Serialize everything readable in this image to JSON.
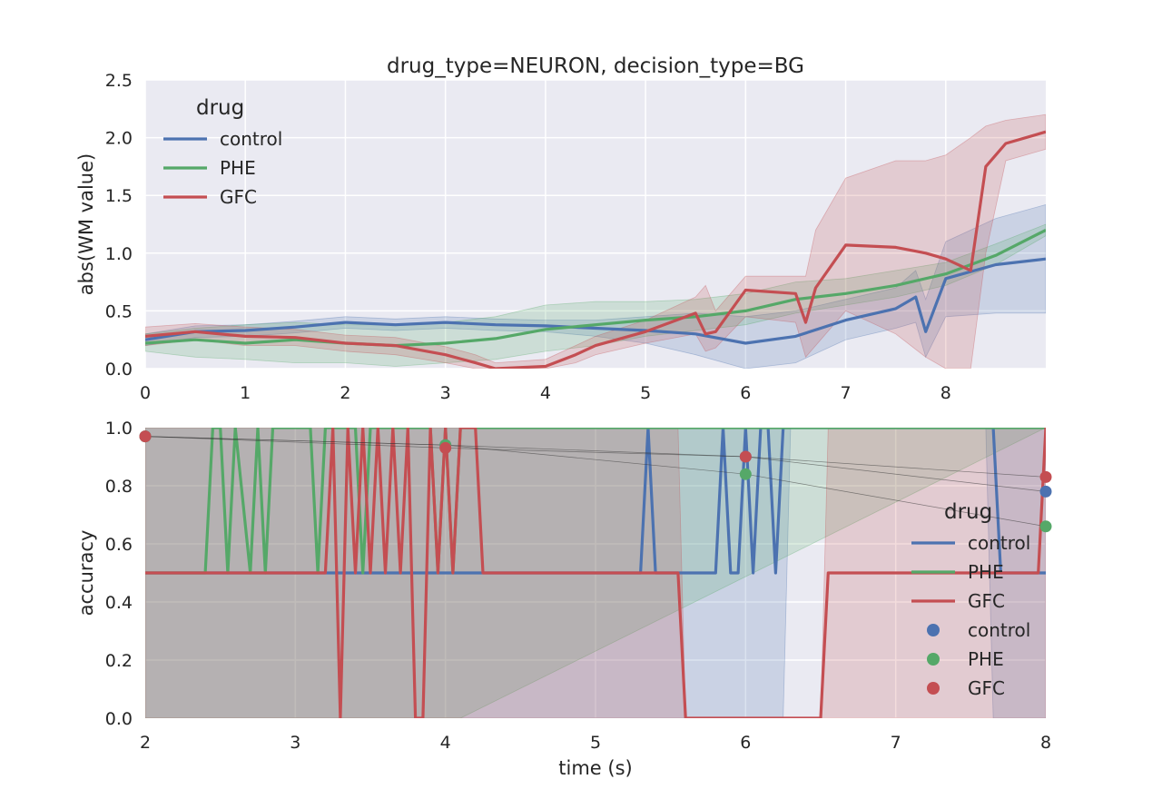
{
  "colors": {
    "control": "#4c72b0",
    "PHE": "#55a868",
    "GFC": "#c44e52",
    "axes_bg": "#eaeaf2",
    "grid": "#ffffff"
  },
  "chart_data": [
    {
      "type": "line",
      "title": "drug_type=NEURON, decision_type=BG",
      "xlabel": "",
      "ylabel": "abs(WM value)",
      "xlim": [
        0,
        9
      ],
      "ylim": [
        0,
        2.5
      ],
      "xticks": [
        "0",
        "1",
        "2",
        "3",
        "4",
        "5",
        "6",
        "7",
        "8"
      ],
      "yticks": [
        "0.0",
        "0.5",
        "1.0",
        "1.5",
        "2.0",
        "2.5"
      ],
      "grid": true,
      "legend": {
        "title": "drug",
        "placement": "top-left",
        "entries": [
          "control",
          "PHE",
          "GFC"
        ]
      },
      "series": [
        {
          "name": "control",
          "x": [
            0,
            0.5,
            1,
            1.5,
            2,
            2.5,
            3,
            3.5,
            4,
            4.5,
            5,
            5.5,
            6,
            6.5,
            7,
            7.5,
            7.7,
            7.8,
            8,
            8.5,
            9
          ],
          "y": [
            0.25,
            0.32,
            0.33,
            0.36,
            0.4,
            0.38,
            0.4,
            0.38,
            0.37,
            0.35,
            0.33,
            0.3,
            0.22,
            0.28,
            0.42,
            0.52,
            0.62,
            0.32,
            0.78,
            0.9,
            0.95
          ],
          "lower": [
            0.2,
            0.27,
            0.28,
            0.31,
            0.35,
            0.33,
            0.35,
            0.33,
            0.32,
            0.28,
            0.22,
            0.12,
            0.0,
            0.05,
            0.25,
            0.35,
            0.4,
            0.1,
            0.45,
            0.48,
            0.48
          ],
          "upper": [
            0.3,
            0.37,
            0.38,
            0.41,
            0.45,
            0.43,
            0.45,
            0.43,
            0.42,
            0.42,
            0.45,
            0.48,
            0.45,
            0.5,
            0.6,
            0.7,
            0.85,
            0.6,
            1.1,
            1.3,
            1.42
          ]
        },
        {
          "name": "PHE",
          "x": [
            0,
            0.5,
            1,
            1.5,
            2,
            2.5,
            3,
            3.5,
            4,
            4.5,
            5,
            5.5,
            6,
            6.5,
            7,
            7.5,
            8,
            8.5,
            9
          ],
          "y": [
            0.22,
            0.25,
            0.22,
            0.25,
            0.22,
            0.2,
            0.22,
            0.26,
            0.34,
            0.38,
            0.42,
            0.45,
            0.5,
            0.6,
            0.65,
            0.72,
            0.82,
            0.98,
            1.2
          ],
          "lower": [
            0.15,
            0.1,
            0.08,
            0.05,
            0.05,
            0.02,
            0.05,
            0.08,
            0.15,
            0.2,
            0.28,
            0.33,
            0.38,
            0.48,
            0.55,
            0.62,
            0.72,
            0.9,
            1.15
          ],
          "upper": [
            0.3,
            0.35,
            0.38,
            0.4,
            0.38,
            0.38,
            0.4,
            0.45,
            0.55,
            0.58,
            0.58,
            0.6,
            0.65,
            0.75,
            0.78,
            0.85,
            0.92,
            1.08,
            1.25
          ]
        },
        {
          "name": "GFC",
          "x": [
            0,
            0.5,
            1,
            1.5,
            2,
            2.5,
            3,
            3.3,
            3.5,
            4,
            4.3,
            4.5,
            5,
            5.5,
            5.6,
            5.7,
            6,
            6.5,
            6.6,
            6.7,
            7,
            7.5,
            7.8,
            8,
            8.25,
            8.4,
            8.6,
            9
          ],
          "y": [
            0.28,
            0.32,
            0.28,
            0.27,
            0.22,
            0.2,
            0.12,
            0.05,
            0.0,
            0.02,
            0.12,
            0.2,
            0.32,
            0.48,
            0.3,
            0.32,
            0.68,
            0.65,
            0.4,
            0.7,
            1.07,
            1.05,
            1.0,
            0.95,
            0.85,
            1.75,
            1.95,
            2.05
          ],
          "lower": [
            0.2,
            0.25,
            0.2,
            0.2,
            0.15,
            0.12,
            0.05,
            0.0,
            0.0,
            0.0,
            0.05,
            0.12,
            0.22,
            0.3,
            0.15,
            0.18,
            0.45,
            0.4,
            0.1,
            0.2,
            0.5,
            0.3,
            0.1,
            0.0,
            0.0,
            1.0,
            1.8,
            1.9
          ],
          "upper": [
            0.36,
            0.39,
            0.36,
            0.34,
            0.29,
            0.27,
            0.19,
            0.12,
            0.05,
            0.08,
            0.2,
            0.28,
            0.42,
            0.62,
            0.72,
            0.5,
            0.8,
            0.8,
            0.8,
            1.2,
            1.65,
            1.8,
            1.8,
            1.85,
            2.0,
            2.1,
            2.15,
            2.2
          ]
        }
      ]
    },
    {
      "type": "line",
      "title": "",
      "xlabel": "time (s)",
      "ylabel": "accuracy",
      "xlim": [
        2,
        8
      ],
      "ylim": [
        0,
        1
      ],
      "xticks": [
        "2",
        "3",
        "4",
        "5",
        "6",
        "7",
        "8"
      ],
      "yticks": [
        "0.0",
        "0.2",
        "0.4",
        "0.6",
        "0.8",
        "1.0"
      ],
      "grid": true,
      "legend": {
        "title": "drug",
        "placement": "lower-right",
        "entries": [
          "control",
          "PHE",
          "GFC",
          "control",
          "PHE",
          "GFC"
        ]
      },
      "series": [
        {
          "name": "control",
          "x": [
            2,
            5.3,
            5.35,
            5.4,
            5.8,
            5.85,
            5.9,
            5.95,
            6.0,
            6.05,
            6.1,
            6.15,
            6.2,
            6.25,
            6.3,
            7.6,
            7.65,
            7.7,
            8
          ],
          "y": [
            0.5,
            0.5,
            1.0,
            0.5,
            0.5,
            1.0,
            0.5,
            0.5,
            1.0,
            0.5,
            1.0,
            1.0,
            0.5,
            1.0,
            1.0,
            1.0,
            1.0,
            0.5,
            0.5
          ],
          "lower": [
            0.0,
            0.0,
            0.0,
            0.0,
            0.0,
            0.0,
            0.0,
            0.0,
            0.0,
            0.0,
            0.0,
            0.0,
            0.0,
            0.0,
            1.0,
            1.0,
            0.0,
            0.0,
            0.0
          ],
          "upper": [
            1.0,
            1.0,
            1.0,
            1.0,
            1.0,
            1.0,
            1.0,
            1.0,
            1.0,
            1.0,
            1.0,
            1.0,
            1.0,
            1.0,
            1.0,
            1.0,
            1.0,
            1.0,
            1.0
          ]
        },
        {
          "name": "PHE",
          "x": [
            2,
            2.4,
            2.45,
            2.5,
            2.55,
            2.6,
            2.7,
            2.75,
            2.8,
            2.85,
            2.9,
            3.1,
            3.15,
            3.2,
            3.25,
            3.4,
            3.45,
            3.5,
            3.9,
            3.95,
            4.0,
            4.05,
            4.1,
            8
          ],
          "y": [
            0.5,
            0.5,
            1.0,
            1.0,
            0.5,
            1.0,
            0.5,
            1.0,
            0.5,
            1.0,
            1.0,
            1.0,
            0.5,
            1.0,
            1.0,
            1.0,
            0.5,
            1.0,
            1.0,
            0.5,
            1.0,
            0.5,
            1.0,
            1.0
          ],
          "lower": [
            0.0,
            0.0,
            0.0,
            0.0,
            0.0,
            0.0,
            0.0,
            0.0,
            0.0,
            0.0,
            0.0,
            0.0,
            0.0,
            0.0,
            0.0,
            0.0,
            0.0,
            0.0,
            0.0,
            0.0,
            0.0,
            0.0,
            0.0,
            1.0
          ],
          "upper": [
            1.0,
            1.0,
            1.0,
            1.0,
            1.0,
            1.0,
            1.0,
            1.0,
            1.0,
            1.0,
            1.0,
            1.0,
            1.0,
            1.0,
            1.0,
            1.0,
            1.0,
            1.0,
            1.0,
            1.0,
            1.0,
            1.0,
            1.0,
            1.0
          ]
        },
        {
          "name": "GFC",
          "x": [
            2,
            3.2,
            3.25,
            3.3,
            3.35,
            3.4,
            3.45,
            3.5,
            3.55,
            3.6,
            3.65,
            3.7,
            3.75,
            3.8,
            3.85,
            3.9,
            3.95,
            4.0,
            4.05,
            4.1,
            4.15,
            4.2,
            4.25,
            5.55,
            5.6,
            6.5,
            6.55,
            7.95,
            8
          ],
          "y": [
            0.5,
            0.5,
            1.0,
            0.0,
            1.0,
            0.5,
            1.0,
            0.5,
            1.0,
            0.5,
            1.0,
            0.5,
            1.0,
            0.0,
            0.0,
            1.0,
            0.5,
            1.0,
            0.5,
            1.0,
            1.0,
            1.0,
            0.5,
            0.5,
            0.0,
            0.0,
            0.5,
            0.5,
            1.0
          ],
          "lower": [
            0.0,
            0.0,
            0.0,
            0.0,
            0.0,
            0.0,
            0.0,
            0.0,
            0.0,
            0.0,
            0.0,
            0.0,
            0.0,
            0.0,
            0.0,
            0.0,
            0.0,
            0.0,
            0.0,
            0.0,
            0.0,
            0.0,
            0.0,
            0.0,
            0.0,
            0.0,
            0.0,
            0.0,
            0.0
          ],
          "upper": [
            1.0,
            1.0,
            1.0,
            1.0,
            1.0,
            1.0,
            1.0,
            1.0,
            1.0,
            1.0,
            1.0,
            1.0,
            1.0,
            1.0,
            1.0,
            1.0,
            1.0,
            1.0,
            1.0,
            1.0,
            1.0,
            1.0,
            1.0,
            1.0,
            0.0,
            0.0,
            1.0,
            1.0,
            1.0
          ]
        }
      ],
      "points": [
        {
          "name": "control",
          "x": [
            2,
            4,
            6,
            8
          ],
          "y": [
            0.97,
            0.94,
            0.9,
            0.78
          ]
        },
        {
          "name": "PHE",
          "x": [
            2,
            4,
            6,
            8
          ],
          "y": [
            0.97,
            0.94,
            0.84,
            0.66
          ]
        },
        {
          "name": "GFC",
          "x": [
            2,
            4,
            6,
            8
          ],
          "y": [
            0.97,
            0.93,
            0.9,
            0.83
          ]
        }
      ]
    }
  ]
}
